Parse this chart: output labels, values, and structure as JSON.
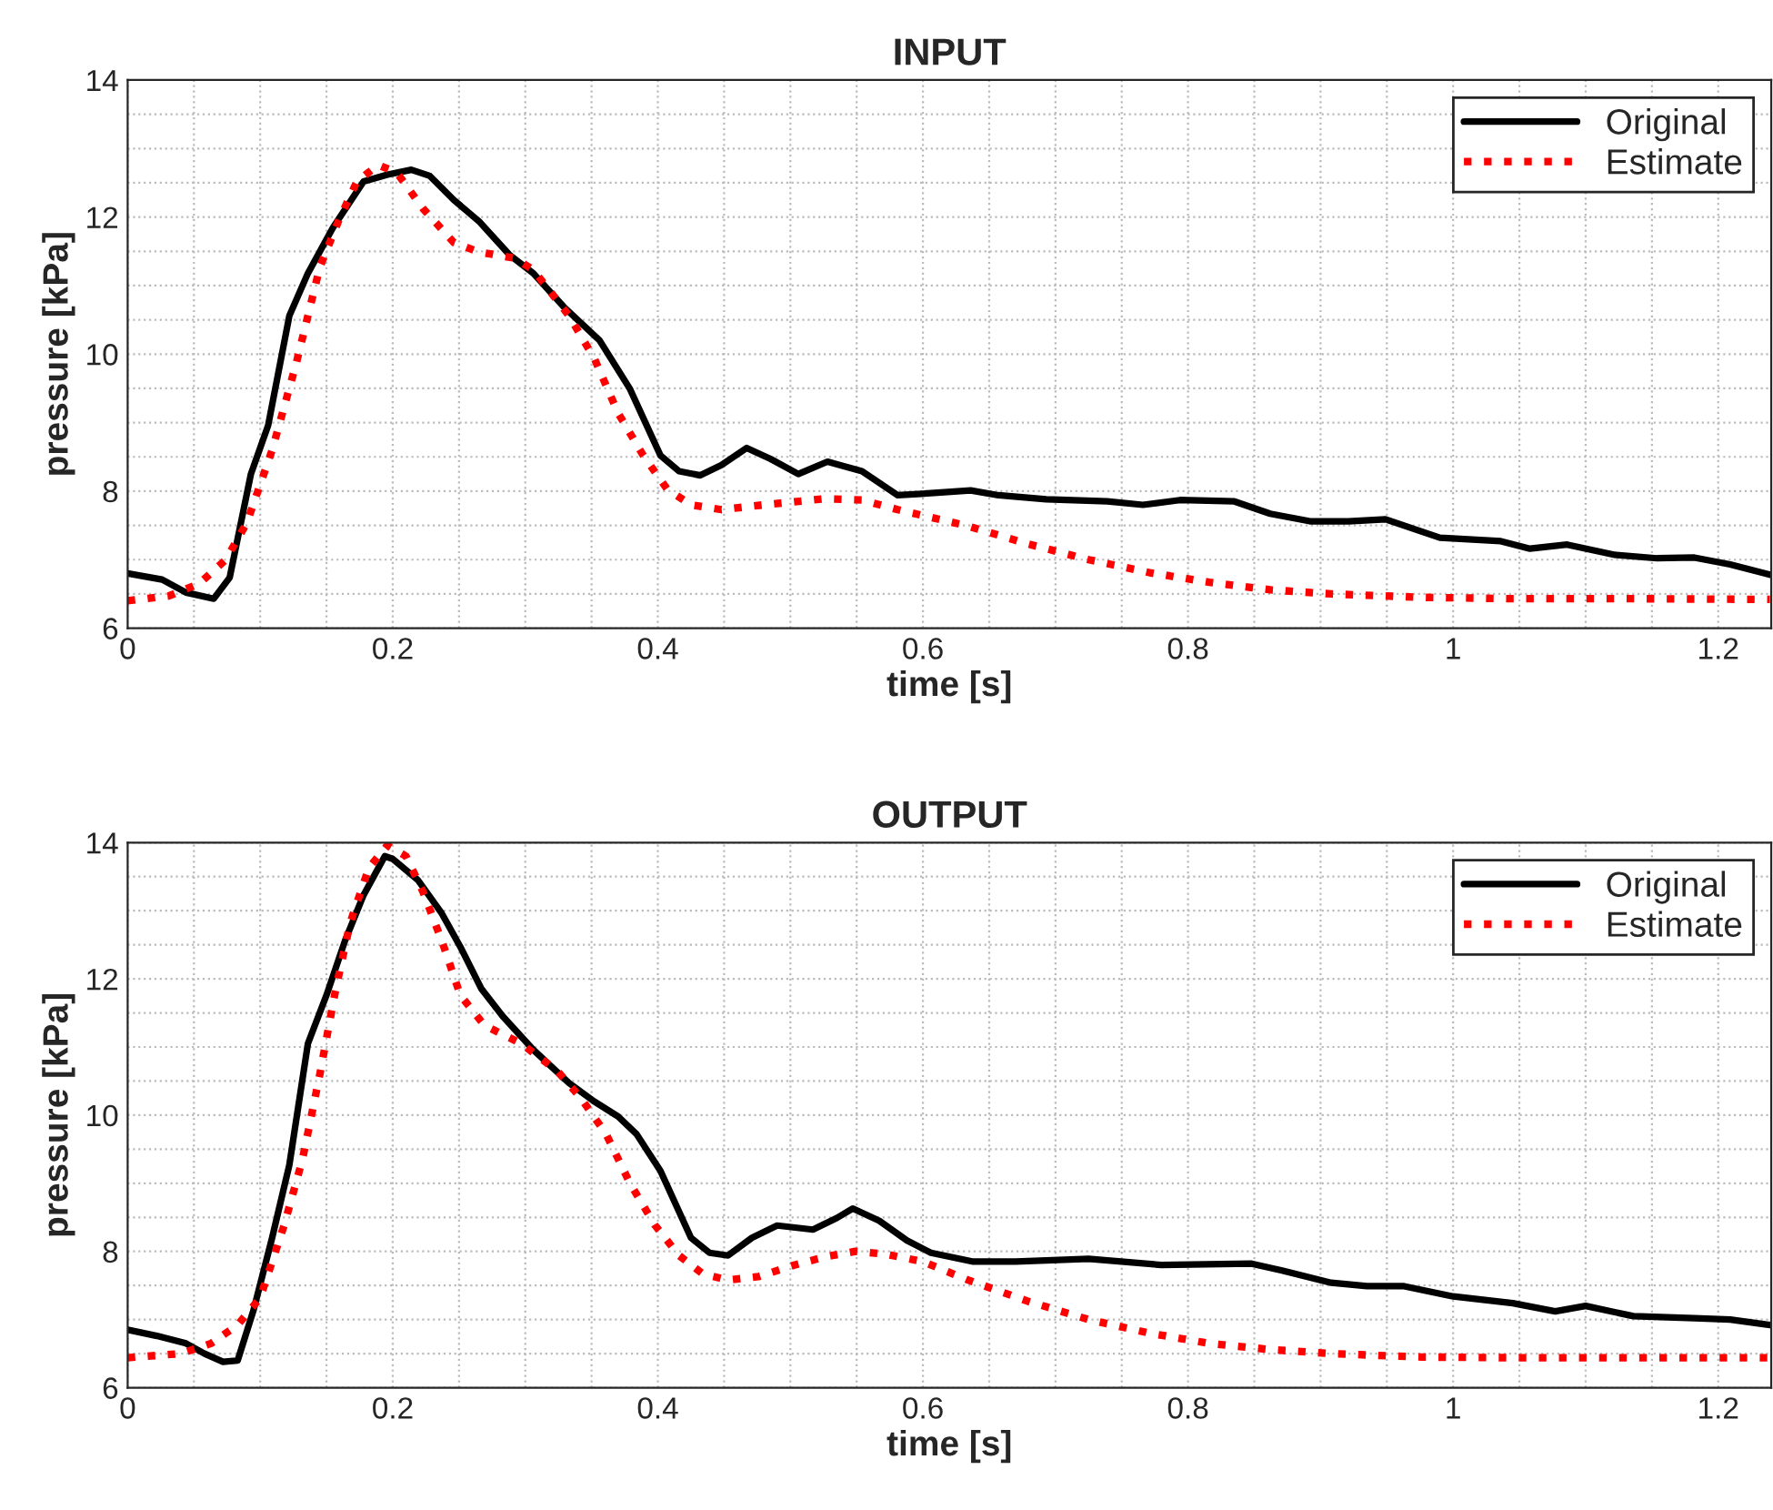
{
  "chart_data": [
    {
      "type": "line",
      "title": "INPUT",
      "xlabel": "time [s]",
      "ylabel": "pressure [kPa]",
      "xlim": [
        0,
        1.24
      ],
      "ylim": [
        6,
        14
      ],
      "xticks": [
        0,
        0.2,
        0.4,
        0.6,
        0.8,
        1,
        1.2
      ],
      "yticks": [
        6,
        8,
        10,
        12,
        14
      ],
      "grid": true,
      "legend": "top right",
      "series": [
        {
          "name": "Original",
          "color": "#000000",
          "line_style": "solid",
          "x": [
            0,
            0.026,
            0.044,
            0.065,
            0.077,
            0.093,
            0.106,
            0.122,
            0.136,
            0.155,
            0.178,
            0.196,
            0.214,
            0.228,
            0.246,
            0.265,
            0.288,
            0.306,
            0.329,
            0.356,
            0.379,
            0.402,
            0.416,
            0.432,
            0.448,
            0.467,
            0.485,
            0.506,
            0.528,
            0.554,
            0.581,
            0.606,
            0.636,
            0.657,
            0.693,
            0.739,
            0.766,
            0.794,
            0.835,
            0.862,
            0.892,
            0.921,
            0.949,
            0.99,
            1.036,
            1.058,
            1.086,
            1.122,
            1.154,
            1.182,
            1.209,
            1.239
          ],
          "values": [
            6.8,
            6.71,
            6.52,
            6.43,
            6.74,
            8.25,
            8.96,
            10.56,
            11.18,
            11.85,
            12.52,
            12.62,
            12.69,
            12.6,
            12.25,
            11.94,
            11.45,
            11.18,
            10.69,
            10.2,
            9.49,
            8.52,
            8.29,
            8.23,
            8.38,
            8.63,
            8.47,
            8.25,
            8.43,
            8.29,
            7.94,
            7.97,
            8.01,
            7.94,
            7.88,
            7.85,
            7.8,
            7.87,
            7.85,
            7.67,
            7.56,
            7.56,
            7.59,
            7.32,
            7.27,
            7.16,
            7.22,
            7.07,
            7.02,
            7.03,
            6.93,
            6.78
          ]
        },
        {
          "name": "Estimate",
          "color": "#ff0000",
          "line_style": "dotted",
          "x": [
            0,
            0.031,
            0.054,
            0.074,
            0.09,
            0.109,
            0.127,
            0.145,
            0.159,
            0.173,
            0.189,
            0.203,
            0.223,
            0.246,
            0.265,
            0.292,
            0.306,
            0.333,
            0.352,
            0.37,
            0.389,
            0.407,
            0.425,
            0.448,
            0.48,
            0.526,
            0.554,
            0.581,
            0.634,
            0.679,
            0.725,
            0.771,
            0.816,
            0.862,
            0.908,
            0.976,
            1.045,
            1.136,
            1.239
          ],
          "values": [
            6.4,
            6.47,
            6.65,
            7.0,
            7.54,
            8.6,
            9.85,
            11.27,
            11.94,
            12.52,
            12.76,
            12.65,
            12.12,
            11.63,
            11.49,
            11.4,
            11.23,
            10.56,
            9.94,
            9.14,
            8.52,
            8.03,
            7.8,
            7.73,
            7.8,
            7.89,
            7.87,
            7.73,
            7.49,
            7.23,
            7.0,
            6.81,
            6.67,
            6.56,
            6.5,
            6.45,
            6.43,
            6.43,
            6.42
          ]
        }
      ]
    },
    {
      "type": "line",
      "title": "OUTPUT",
      "xlabel": "time [s]",
      "ylabel": "pressure [kPa]",
      "xlim": [
        0,
        1.24
      ],
      "ylim": [
        6,
        14
      ],
      "xticks": [
        0,
        0.2,
        0.4,
        0.6,
        0.8,
        1,
        1.2
      ],
      "yticks": [
        6,
        8,
        10,
        12,
        14
      ],
      "grid": true,
      "legend": "top right",
      "series": [
        {
          "name": "Original",
          "color": "#000000",
          "line_style": "solid",
          "x": [
            0,
            0.022,
            0.044,
            0.058,
            0.072,
            0.083,
            0.095,
            0.109,
            0.122,
            0.136,
            0.15,
            0.164,
            0.178,
            0.194,
            0.2,
            0.219,
            0.237,
            0.251,
            0.267,
            0.283,
            0.306,
            0.333,
            0.352,
            0.37,
            0.384,
            0.402,
            0.425,
            0.439,
            0.453,
            0.471,
            0.49,
            0.517,
            0.535,
            0.547,
            0.567,
            0.588,
            0.606,
            0.638,
            0.67,
            0.725,
            0.78,
            0.848,
            0.871,
            0.908,
            0.935,
            0.963,
            1.0,
            1.045,
            1.077,
            1.1,
            1.136,
            1.182,
            1.209,
            1.239
          ],
          "values": [
            6.85,
            6.76,
            6.65,
            6.5,
            6.38,
            6.4,
            7.14,
            8.2,
            9.27,
            11.05,
            11.76,
            12.56,
            13.23,
            13.8,
            13.76,
            13.45,
            12.96,
            12.47,
            11.85,
            11.45,
            10.96,
            10.47,
            10.2,
            9.98,
            9.72,
            9.18,
            8.2,
            7.98,
            7.94,
            8.2,
            8.38,
            8.32,
            8.49,
            8.63,
            8.45,
            8.16,
            7.98,
            7.85,
            7.85,
            7.89,
            7.8,
            7.82,
            7.72,
            7.54,
            7.49,
            7.49,
            7.34,
            7.24,
            7.12,
            7.2,
            7.05,
            7.02,
            7.0,
            6.92
          ]
        },
        {
          "name": "Estimate",
          "color": "#ff0000",
          "line_style": "dotted",
          "x": [
            0,
            0.04,
            0.063,
            0.083,
            0.1,
            0.118,
            0.132,
            0.145,
            0.157,
            0.168,
            0.182,
            0.196,
            0.21,
            0.223,
            0.237,
            0.251,
            0.269,
            0.297,
            0.324,
            0.342,
            0.361,
            0.379,
            0.398,
            0.416,
            0.434,
            0.453,
            0.476,
            0.503,
            0.526,
            0.549,
            0.572,
            0.6,
            0.634,
            0.679,
            0.725,
            0.771,
            0.816,
            0.862,
            0.908,
            0.976,
            1.045,
            1.136,
            1.239
          ],
          "values": [
            6.44,
            6.5,
            6.65,
            6.92,
            7.32,
            8.38,
            9.36,
            10.6,
            11.85,
            12.83,
            13.63,
            13.96,
            13.8,
            13.27,
            12.56,
            11.76,
            11.32,
            11.05,
            10.65,
            10.25,
            9.72,
            9.0,
            8.38,
            7.94,
            7.67,
            7.58,
            7.63,
            7.8,
            7.92,
            8.0,
            7.96,
            7.85,
            7.58,
            7.27,
            7.0,
            6.8,
            6.65,
            6.56,
            6.5,
            6.45,
            6.44,
            6.44,
            6.44
          ]
        }
      ]
    }
  ]
}
